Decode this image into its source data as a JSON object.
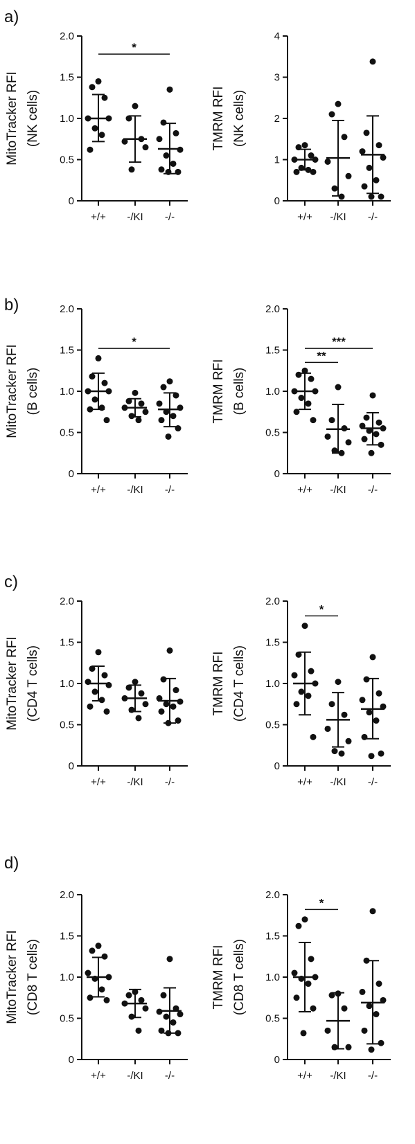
{
  "panels": [
    {
      "label": "a)"
    },
    {
      "label": "b)"
    },
    {
      "label": "c)"
    },
    {
      "label": "d)"
    }
  ],
  "chart_data": [
    {
      "type": "scatter",
      "panel": "a)",
      "ylabel_lines": [
        "MitoTracker RFI",
        "(NK cells)"
      ],
      "categories": [
        "+/+",
        "-/KI",
        "-/-"
      ],
      "ylim": [
        0,
        2.0
      ],
      "yticks": [
        "0",
        "0.5",
        "1.0",
        "1.5",
        "2.0"
      ],
      "grid": false,
      "groups": [
        {
          "points": [
            1.45,
            1.38,
            1.25,
            1.0,
            1.0,
            0.88,
            0.8,
            0.62
          ],
          "mean": 1.0,
          "sd_low": 0.72,
          "sd_high": 1.29
        },
        {
          "points": [
            1.15,
            1.0,
            0.75,
            0.72,
            0.65,
            0.38
          ],
          "mean": 0.75,
          "sd_low": 0.47,
          "sd_high": 1.03
        },
        {
          "points": [
            1.35,
            0.95,
            0.82,
            0.75,
            0.62,
            0.55,
            0.45,
            0.38,
            0.35,
            0.35
          ],
          "mean": 0.63,
          "sd_low": 0.33,
          "sd_high": 0.94
        }
      ],
      "significance": [
        {
          "from": 0,
          "to": 2,
          "text": "*",
          "y": 1.78
        }
      ]
    },
    {
      "type": "scatter",
      "panel": "a)",
      "ylabel_lines": [
        "TMRM RFI",
        "(NK cells)"
      ],
      "categories": [
        "+/+",
        "-/KI",
        "-/-"
      ],
      "ylim": [
        0,
        4
      ],
      "yticks": [
        "0",
        "1",
        "2",
        "3",
        "4"
      ],
      "grid": false,
      "groups": [
        {
          "points": [
            1.35,
            1.3,
            1.1,
            1.0,
            1.0,
            0.8,
            0.75,
            0.7,
            0.7
          ],
          "mean": 1.0,
          "sd_low": 0.75,
          "sd_high": 1.25
        },
        {
          "points": [
            2.35,
            2.1,
            1.55,
            0.95,
            0.6,
            0.3,
            0.1
          ],
          "mean": 1.04,
          "sd_low": 0.12,
          "sd_high": 1.95
        },
        {
          "points": [
            3.38,
            1.65,
            1.35,
            1.2,
            1.05,
            0.8,
            0.5,
            0.35,
            0.1,
            0.1
          ],
          "mean": 1.12,
          "sd_low": 0.18,
          "sd_high": 2.06
        }
      ],
      "significance": []
    },
    {
      "type": "scatter",
      "panel": "b)",
      "ylabel_lines": [
        "MitoTracker RFI",
        "(B cells)"
      ],
      "categories": [
        "+/+",
        "-/KI",
        "-/-"
      ],
      "ylim": [
        0,
        2.0
      ],
      "yticks": [
        "0",
        "0.5",
        "1.0",
        "1.5",
        "2.0"
      ],
      "grid": false,
      "groups": [
        {
          "points": [
            1.4,
            1.18,
            1.1,
            1.0,
            1.0,
            0.9,
            0.8,
            0.78,
            0.65
          ],
          "mean": 1.0,
          "sd_low": 0.78,
          "sd_high": 1.22
        },
        {
          "points": [
            0.98,
            0.88,
            0.85,
            0.8,
            0.75,
            0.7,
            0.65
          ],
          "mean": 0.8,
          "sd_low": 0.69,
          "sd_high": 0.91
        },
        {
          "points": [
            1.12,
            1.05,
            0.95,
            0.85,
            0.8,
            0.75,
            0.7,
            0.65,
            0.55,
            0.45
          ],
          "mean": 0.78,
          "sd_low": 0.57,
          "sd_high": 0.98
        }
      ],
      "significance": [
        {
          "from": 0,
          "to": 2,
          "text": "*",
          "y": 1.52
        }
      ]
    },
    {
      "type": "scatter",
      "panel": "b)",
      "ylabel_lines": [
        "TMRM RFI",
        "(B cells)"
      ],
      "categories": [
        "+/+",
        "-/KI",
        "-/-"
      ],
      "ylim": [
        0,
        2.0
      ],
      "yticks": [
        "0",
        "0.5",
        "1.0",
        "1.5",
        "2.0"
      ],
      "grid": false,
      "groups": [
        {
          "points": [
            1.25,
            1.2,
            1.15,
            1.0,
            1.0,
            0.92,
            0.85,
            0.75,
            0.65
          ],
          "mean": 1.0,
          "sd_low": 0.78,
          "sd_high": 1.22
        },
        {
          "points": [
            1.05,
            0.65,
            0.55,
            0.45,
            0.38,
            0.28,
            0.25
          ],
          "mean": 0.54,
          "sd_low": 0.25,
          "sd_high": 0.84
        },
        {
          "points": [
            0.95,
            0.68,
            0.62,
            0.58,
            0.55,
            0.52,
            0.48,
            0.42,
            0.35,
            0.25
          ],
          "mean": 0.55,
          "sd_low": 0.35,
          "sd_high": 0.74
        }
      ],
      "significance": [
        {
          "from": 0,
          "to": 1,
          "text": "**",
          "y": 1.35
        },
        {
          "from": 0,
          "to": 2,
          "text": "***",
          "y": 1.52
        }
      ]
    },
    {
      "type": "scatter",
      "panel": "c)",
      "ylabel_lines": [
        "MitoTracker RFI",
        "(CD4 T cells)"
      ],
      "categories": [
        "+/+",
        "-/KI",
        "-/-"
      ],
      "ylim": [
        0,
        2.0
      ],
      "yticks": [
        "0",
        "0.5",
        "1.0",
        "1.5",
        "2.0"
      ],
      "grid": false,
      "groups": [
        {
          "points": [
            1.38,
            1.18,
            1.1,
            1.02,
            0.98,
            0.9,
            0.8,
            0.72,
            0.66
          ],
          "mean": 1.0,
          "sd_low": 0.79,
          "sd_high": 1.21
        },
        {
          "points": [
            1.02,
            0.95,
            0.88,
            0.82,
            0.75,
            0.68,
            0.58
          ],
          "mean": 0.82,
          "sd_low": 0.66,
          "sd_high": 0.98
        },
        {
          "points": [
            1.4,
            1.05,
            0.92,
            0.82,
            0.78,
            0.75,
            0.72,
            0.66,
            0.55,
            0.52
          ],
          "mean": 0.79,
          "sd_low": 0.52,
          "sd_high": 1.06
        }
      ],
      "significance": []
    },
    {
      "type": "scatter",
      "panel": "c)",
      "ylabel_lines": [
        "TMRM RFI",
        "(CD4 T cells)"
      ],
      "categories": [
        "+/+",
        "-/KI",
        "-/-"
      ],
      "ylim": [
        0,
        2.0
      ],
      "yticks": [
        "0",
        "0.5",
        "1.0",
        "1.5",
        "2.0"
      ],
      "grid": false,
      "groups": [
        {
          "points": [
            1.7,
            1.35,
            1.15,
            1.1,
            1.0,
            0.9,
            0.85,
            0.75,
            0.35
          ],
          "mean": 1.0,
          "sd_low": 0.62,
          "sd_high": 1.38
        },
        {
          "points": [
            1.02,
            0.75,
            0.62,
            0.45,
            0.3,
            0.18,
            0.15
          ],
          "mean": 0.56,
          "sd_low": 0.23,
          "sd_high": 0.89
        },
        {
          "points": [
            1.32,
            1.05,
            0.88,
            0.8,
            0.72,
            0.65,
            0.55,
            0.35,
            0.15,
            0.12
          ],
          "mean": 0.69,
          "sd_low": 0.33,
          "sd_high": 1.06
        }
      ],
      "significance": [
        {
          "from": 0,
          "to": 1,
          "text": "*",
          "y": 1.82
        }
      ]
    },
    {
      "type": "scatter",
      "panel": "d)",
      "ylabel_lines": [
        "MitoTracker RFI",
        "(CD8 T cells)"
      ],
      "categories": [
        "+/+",
        "-/KI",
        "-/-"
      ],
      "ylim": [
        0,
        2.0
      ],
      "yticks": [
        "0",
        "0.5",
        "1.0",
        "1.5",
        "2.0"
      ],
      "grid": false,
      "groups": [
        {
          "points": [
            1.38,
            1.32,
            1.25,
            1.05,
            1.0,
            0.98,
            0.85,
            0.75,
            0.72
          ],
          "mean": 1.0,
          "sd_low": 0.76,
          "sd_high": 1.24
        },
        {
          "points": [
            0.82,
            0.78,
            0.72,
            0.68,
            0.62,
            0.52,
            0.35
          ],
          "mean": 0.68,
          "sd_low": 0.51,
          "sd_high": 0.85
        },
        {
          "points": [
            1.22,
            0.78,
            0.62,
            0.58,
            0.55,
            0.52,
            0.45,
            0.35,
            0.32,
            0.32
          ],
          "mean": 0.59,
          "sd_low": 0.32,
          "sd_high": 0.87
        }
      ],
      "significance": []
    },
    {
      "type": "scatter",
      "panel": "d)",
      "ylabel_lines": [
        "TMRM RFI",
        "(CD8 T cells)"
      ],
      "categories": [
        "+/+",
        "-/KI",
        "-/-"
      ],
      "ylim": [
        0,
        2.0
      ],
      "yticks": [
        "0",
        "0.5",
        "1.0",
        "1.5",
        "2.0"
      ],
      "grid": false,
      "groups": [
        {
          "points": [
            1.7,
            1.62,
            1.22,
            1.05,
            1.0,
            0.98,
            0.92,
            0.75,
            0.62,
            0.32
          ],
          "mean": 1.0,
          "sd_low": 0.58,
          "sd_high": 1.42
        },
        {
          "points": [
            0.8,
            0.78,
            0.62,
            0.35,
            0.15,
            0.15
          ],
          "mean": 0.47,
          "sd_low": 0.13,
          "sd_high": 0.81
        },
        {
          "points": [
            1.8,
            1.2,
            0.92,
            0.82,
            0.72,
            0.65,
            0.55,
            0.35,
            0.2,
            0.12
          ],
          "mean": 0.69,
          "sd_low": 0.19,
          "sd_high": 1.2
        }
      ],
      "significance": [
        {
          "from": 0,
          "to": 1,
          "text": "*",
          "y": 1.82
        }
      ]
    }
  ]
}
